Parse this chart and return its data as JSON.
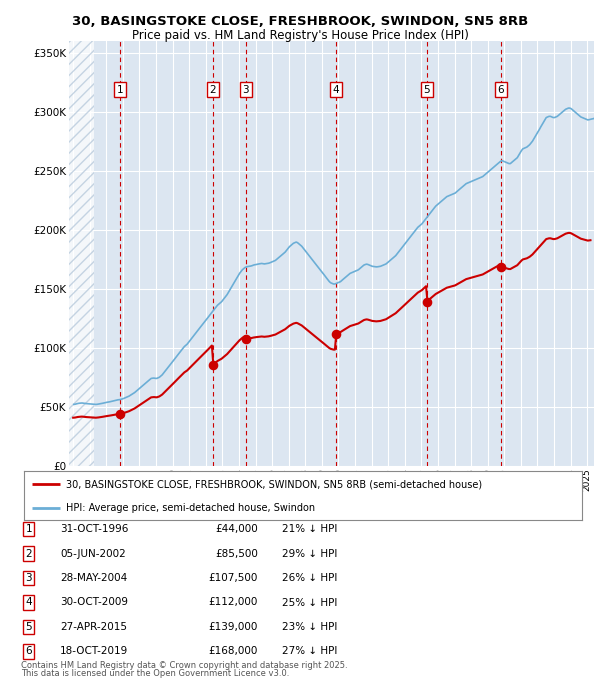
{
  "title_line1": "30, BASINGSTOKE CLOSE, FRESHBROOK, SWINDON, SN5 8RB",
  "title_line2": "Price paid vs. HM Land Registry's House Price Index (HPI)",
  "bg_color": "#dce6f1",
  "sale_points": [
    {
      "label": 1,
      "date": "1996-10-31",
      "price": 44000
    },
    {
      "label": 2,
      "date": "2002-06-05",
      "price": 85500
    },
    {
      "label": 3,
      "date": "2004-05-28",
      "price": 107500
    },
    {
      "label": 4,
      "date": "2009-10-30",
      "price": 112000
    },
    {
      "label": 5,
      "date": "2015-04-27",
      "price": 139000
    },
    {
      "label": 6,
      "date": "2019-10-18",
      "price": 168000
    }
  ],
  "table_rows": [
    {
      "num": 1,
      "date_str": "31-OCT-1996",
      "price_str": "£44,000",
      "pct_str": "21% ↓ HPI"
    },
    {
      "num": 2,
      "date_str": "05-JUN-2002",
      "price_str": "£85,500",
      "pct_str": "29% ↓ HPI"
    },
    {
      "num": 3,
      "date_str": "28-MAY-2004",
      "price_str": "£107,500",
      "pct_str": "26% ↓ HPI"
    },
    {
      "num": 4,
      "date_str": "30-OCT-2009",
      "price_str": "£112,000",
      "pct_str": "25% ↓ HPI"
    },
    {
      "num": 5,
      "date_str": "27-APR-2015",
      "price_str": "£139,000",
      "pct_str": "23% ↓ HPI"
    },
    {
      "num": 6,
      "date_str": "18-OCT-2019",
      "price_str": "£168,000",
      "pct_str": "27% ↓ HPI"
    }
  ],
  "legend_label_red": "30, BASINGSTOKE CLOSE, FRESHBROOK, SWINDON, SN5 8RB (semi-detached house)",
  "legend_label_blue": "HPI: Average price, semi-detached house, Swindon",
  "footer_line1": "Contains HM Land Registry data © Crown copyright and database right 2025.",
  "footer_line2": "This data is licensed under the Open Government Licence v3.0.",
  "red_color": "#cc0000",
  "blue_color": "#6baed6",
  "ylim_max": 360000,
  "yticks": [
    0,
    50000,
    100000,
    150000,
    200000,
    250000,
    300000,
    350000
  ],
  "ytick_labels": [
    "£0",
    "£50K",
    "£100K",
    "£150K",
    "£200K",
    "£250K",
    "£300K",
    "£350K"
  ],
  "hpi_monthly": {
    "start_year": 1994,
    "start_month": 1,
    "values": [
      52000,
      52200,
      52500,
      52800,
      53000,
      53100,
      53200,
      53000,
      52800,
      52700,
      52600,
      52500,
      52400,
      52300,
      52200,
      52100,
      52000,
      52100,
      52300,
      52500,
      52700,
      53000,
      53300,
      53500,
      53800,
      54000,
      54200,
      54500,
      54800,
      55000,
      55300,
      55600,
      55900,
      56000,
      56300,
      56600,
      57000,
      57500,
      58000,
      58500,
      59000,
      59800,
      60500,
      61200,
      62000,
      63000,
      64000,
      65000,
      66000,
      67000,
      68000,
      69000,
      70000,
      71000,
      72000,
      73000,
      74000,
      74200,
      74300,
      74100,
      74000,
      74500,
      75000,
      76000,
      77000,
      78500,
      80000,
      81500,
      83000,
      84500,
      86000,
      87500,
      89000,
      90500,
      92000,
      93500,
      95000,
      96500,
      98000,
      99500,
      101000,
      102000,
      103000,
      104500,
      106000,
      107500,
      109000,
      110500,
      112000,
      113500,
      115000,
      116500,
      118000,
      119500,
      121000,
      122500,
      124000,
      125500,
      127000,
      128500,
      130000,
      131500,
      133000,
      134500,
      136000,
      137000,
      138000,
      139000,
      140500,
      142000,
      143500,
      145000,
      147000,
      149000,
      151000,
      153000,
      155000,
      157000,
      159000,
      161000,
      163000,
      164500,
      166000,
      167000,
      168000,
      168500,
      168800,
      169000,
      169200,
      169500,
      170000,
      170300,
      170500,
      170800,
      171000,
      171200,
      171400,
      171200,
      171000,
      171200,
      171400,
      171600,
      172000,
      172500,
      173000,
      173500,
      174000,
      175000,
      176000,
      177000,
      178000,
      179000,
      180000,
      181000,
      182500,
      184000,
      185500,
      186500,
      187500,
      188500,
      189000,
      189500,
      189000,
      188000,
      187000,
      186000,
      184500,
      183000,
      181500,
      180000,
      178500,
      177000,
      175500,
      174000,
      172500,
      171000,
      169500,
      168000,
      166500,
      165000,
      163500,
      162000,
      160500,
      159000,
      157500,
      156000,
      155000,
      154500,
      154000,
      154000,
      154500,
      155000,
      155500,
      156000,
      157000,
      158000,
      159000,
      160000,
      161000,
      162000,
      163000,
      163500,
      164000,
      164500,
      165000,
      165500,
      166000,
      167000,
      168000,
      169000,
      170000,
      170500,
      170800,
      170500,
      170000,
      169500,
      169000,
      168800,
      168600,
      168500,
      168600,
      168800,
      169000,
      169500,
      170000,
      170500,
      171000,
      172000,
      173000,
      174000,
      175000,
      176000,
      177000,
      178000,
      179500,
      181000,
      182500,
      184000,
      185500,
      187000,
      188500,
      190000,
      191500,
      193000,
      194500,
      196000,
      197500,
      199000,
      200500,
      202000,
      203000,
      204000,
      205000,
      206500,
      208000,
      209500,
      211000,
      212500,
      214000,
      215500,
      217000,
      218500,
      220000,
      221000,
      222000,
      223000,
      224000,
      225000,
      226000,
      227000,
      228000,
      228500,
      229000,
      229500,
      230000,
      230500,
      231000,
      232000,
      233000,
      234000,
      235000,
      236000,
      237000,
      238000,
      239000,
      239500,
      240000,
      240500,
      241000,
      241500,
      242000,
      242500,
      243000,
      243500,
      244000,
      244500,
      245000,
      246000,
      247000,
      248000,
      249000,
      250000,
      251000,
      252000,
      253000,
      254000,
      255000,
      256000,
      257000,
      258000,
      258500,
      258000,
      257500,
      257000,
      256500,
      256000,
      256000,
      257000,
      258000,
      259000,
      260000,
      261000,
      263000,
      265000,
      267000,
      268500,
      269000,
      269500,
      270000,
      271000,
      272000,
      273500,
      275000,
      277000,
      279000,
      281000,
      283000,
      285000,
      287000,
      289000,
      291000,
      293000,
      295000,
      295500,
      296000,
      296000,
      295500,
      295000,
      295000,
      295500,
      296000,
      297000,
      298000,
      299000,
      300000,
      301000,
      302000,
      302500,
      303000,
      303000,
      302500,
      301500,
      300500,
      299500,
      298500,
      297500,
      296500,
      295500,
      295000,
      294500,
      294000,
      293500,
      293000,
      293200,
      293500,
      293800,
      294000,
      294500,
      295000,
      295800,
      296500,
      297500,
      298500,
      299500,
      300500,
      301500,
      302500,
      303500,
      305000,
      306000,
      307000
    ]
  }
}
